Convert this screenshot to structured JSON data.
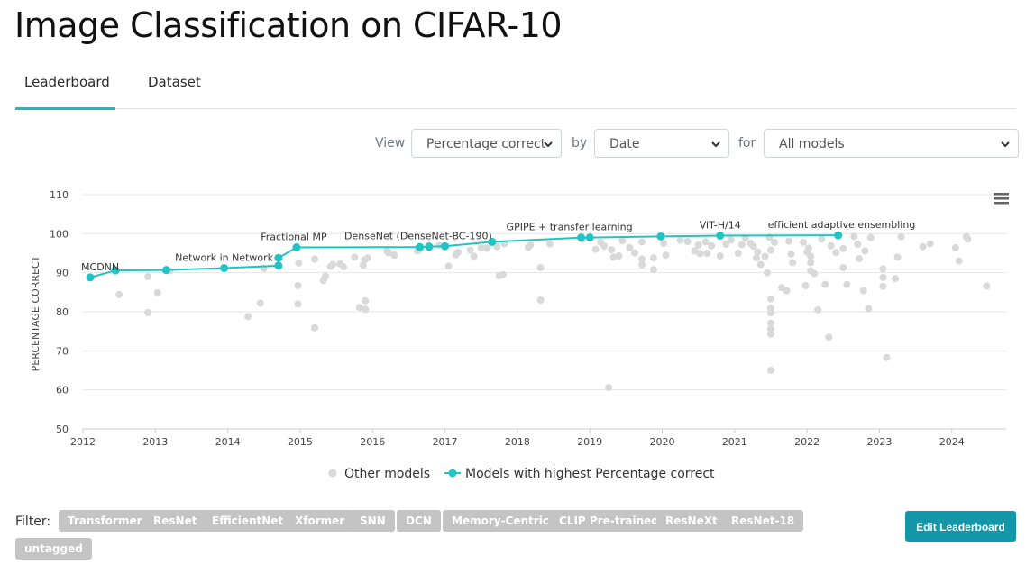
{
  "page": {
    "title": "Image Classification on CIFAR-10"
  },
  "tabs": [
    {
      "label": "Leaderboard",
      "active": true
    },
    {
      "label": "Dataset",
      "active": false
    }
  ],
  "controls": {
    "view_label": "View",
    "view_value": "Percentage correct",
    "by_label": "by",
    "by_value": "Date",
    "for_label": "for",
    "for_value": "All models"
  },
  "chart_data": {
    "type": "scatter",
    "ylabel": "PERCENTAGE CORRECT",
    "xlabel": "",
    "ylim": [
      50,
      110
    ],
    "xlim": [
      2012,
      2024.75
    ],
    "yticks": [
      50,
      60,
      70,
      80,
      90,
      100,
      110
    ],
    "xticks": [
      "2012",
      "2013",
      "2014",
      "2015",
      "2016",
      "2017",
      "2018",
      "2019",
      "2020",
      "2021",
      "2022",
      "2023",
      "2024"
    ],
    "legend": {
      "position": "bottom",
      "other": "Other models",
      "best": "Models with highest Percentage correct"
    },
    "colors": {
      "best": "#21c4c4",
      "other": "#d9d9d9",
      "grid": "#e6e6e6"
    },
    "best_series": [
      {
        "x": 2012.1,
        "y": 88.8,
        "label": "MCDNN"
      },
      {
        "x": 2012.45,
        "y": 90.6
      },
      {
        "x": 2013.15,
        "y": 90.7
      },
      {
        "x": 2013.95,
        "y": 91.2,
        "label": "Network in Network"
      },
      {
        "x": 2014.7,
        "y": 91.8
      },
      {
        "x": 2014.7,
        "y": 93.8
      },
      {
        "x": 2014.95,
        "y": 96.5,
        "label": "Fractional MP"
      },
      {
        "x": 2016.65,
        "y": 96.6
      },
      {
        "x": 2016.78,
        "y": 96.7,
        "label": "DenseNet (DenseNet-BC-190)"
      },
      {
        "x": 2017.0,
        "y": 96.8
      },
      {
        "x": 2017.65,
        "y": 97.9
      },
      {
        "x": 2018.88,
        "y": 99.0,
        "label": "GPIPE + transfer learning"
      },
      {
        "x": 2019.0,
        "y": 99.0
      },
      {
        "x": 2019.98,
        "y": 99.3
      },
      {
        "x": 2020.8,
        "y": 99.5,
        "label": "ViT-H/14"
      },
      {
        "x": 2022.43,
        "y": 99.6,
        "label": "efficient adaptive ensembling"
      }
    ],
    "other_points": [
      [
        2012.5,
        84.4
      ],
      [
        2012.9,
        79.8
      ],
      [
        2012.9,
        89.0
      ],
      [
        2013.03,
        84.9
      ],
      [
        2013.2,
        90.5
      ],
      [
        2014.28,
        78.8
      ],
      [
        2014.45,
        82.2
      ],
      [
        2014.5,
        91.1
      ],
      [
        2014.97,
        82.0
      ],
      [
        2014.97,
        86.7
      ],
      [
        2014.98,
        92.5
      ],
      [
        2015.2,
        93.5
      ],
      [
        2015.2,
        75.9
      ],
      [
        2015.32,
        88.0
      ],
      [
        2015.35,
        89.1
      ],
      [
        2015.42,
        91.6
      ],
      [
        2015.45,
        92.1
      ],
      [
        2015.55,
        92.3
      ],
      [
        2015.6,
        91.5
      ],
      [
        2015.75,
        94.0
      ],
      [
        2015.82,
        81.1
      ],
      [
        2015.87,
        91.9
      ],
      [
        2015.89,
        93.3
      ],
      [
        2015.9,
        82.8
      ],
      [
        2015.9,
        80.6
      ],
      [
        2015.93,
        93.8
      ],
      [
        2016.2,
        95.6
      ],
      [
        2016.22,
        95.1
      ],
      [
        2016.3,
        94.5
      ],
      [
        2016.62,
        95.6
      ],
      [
        2016.67,
        96.2
      ],
      [
        2016.92,
        97.0
      ],
      [
        2017.05,
        91.7
      ],
      [
        2017.15,
        94.6
      ],
      [
        2017.18,
        95.3
      ],
      [
        2017.35,
        95.8
      ],
      [
        2017.4,
        94.2
      ],
      [
        2017.5,
        96.4
      ],
      [
        2017.58,
        96.3
      ],
      [
        2017.72,
        96.7
      ],
      [
        2017.75,
        89.2
      ],
      [
        2017.8,
        89.5
      ],
      [
        2017.82,
        97.4
      ],
      [
        2018.15,
        96.5
      ],
      [
        2018.18,
        97.1
      ],
      [
        2018.32,
        91.3
      ],
      [
        2018.32,
        83.0
      ],
      [
        2018.45,
        97.4
      ],
      [
        2018.9,
        98.5
      ],
      [
        2019.08,
        96.0
      ],
      [
        2019.15,
        97.8
      ],
      [
        2019.2,
        96.8
      ],
      [
        2019.3,
        95.9
      ],
      [
        2019.33,
        94.0
      ],
      [
        2019.26,
        60.6
      ],
      [
        2019.4,
        94.3
      ],
      [
        2019.45,
        98.2
      ],
      [
        2019.55,
        96.4
      ],
      [
        2019.62,
        95.1
      ],
      [
        2019.72,
        97.9
      ],
      [
        2019.72,
        93.5
      ],
      [
        2019.72,
        92.0
      ],
      [
        2019.88,
        93.8
      ],
      [
        2019.88,
        90.8
      ],
      [
        2020.05,
        94.5
      ],
      [
        2020.02,
        97.5
      ],
      [
        2020.25,
        98.3
      ],
      [
        2020.35,
        98.0
      ],
      [
        2020.45,
        95.6
      ],
      [
        2020.5,
        97.1
      ],
      [
        2020.52,
        94.9
      ],
      [
        2020.6,
        97.9
      ],
      [
        2020.62,
        95.0
      ],
      [
        2020.68,
        96.9
      ],
      [
        2020.8,
        94.3
      ],
      [
        2020.88,
        97.3
      ],
      [
        2020.95,
        98.4
      ],
      [
        2021.05,
        95.0
      ],
      [
        2021.1,
        97.2
      ],
      [
        2021.15,
        98.9
      ],
      [
        2021.22,
        97.5
      ],
      [
        2021.26,
        96.8
      ],
      [
        2021.3,
        93.8
      ],
      [
        2021.32,
        95.3
      ],
      [
        2021.36,
        92.1
      ],
      [
        2021.42,
        94.2
      ],
      [
        2021.45,
        90.0
      ],
      [
        2021.48,
        99.1
      ],
      [
        2021.5,
        83.3
      ],
      [
        2021.5,
        80.9
      ],
      [
        2021.5,
        79.7
      ],
      [
        2021.5,
        77.1
      ],
      [
        2021.5,
        75.6
      ],
      [
        2021.5,
        74.3
      ],
      [
        2021.5,
        65.0
      ],
      [
        2021.5,
        95.8
      ],
      [
        2021.55,
        97.8
      ],
      [
        2021.65,
        86.2
      ],
      [
        2021.72,
        85.4
      ],
      [
        2021.75,
        98.1
      ],
      [
        2021.78,
        94.8
      ],
      [
        2021.8,
        92.6
      ],
      [
        2021.95,
        97.8
      ],
      [
        2021.98,
        86.7
      ],
      [
        2022.0,
        95.3
      ],
      [
        2022.02,
        96.3
      ],
      [
        2022.05,
        94.2
      ],
      [
        2022.05,
        92.6
      ],
      [
        2022.05,
        90.5
      ],
      [
        2022.1,
        89.8
      ],
      [
        2022.15,
        80.5
      ],
      [
        2022.2,
        98.6
      ],
      [
        2022.25,
        87.0
      ],
      [
        2022.3,
        73.5
      ],
      [
        2022.33,
        96.9
      ],
      [
        2022.4,
        95.2
      ],
      [
        2022.5,
        96.2
      ],
      [
        2022.5,
        91.3
      ],
      [
        2022.55,
        87.0
      ],
      [
        2022.65,
        99.3
      ],
      [
        2022.7,
        97.3
      ],
      [
        2022.72,
        93.6
      ],
      [
        2022.78,
        85.4
      ],
      [
        2022.8,
        95.6
      ],
      [
        2022.85,
        80.8
      ],
      [
        2022.88,
        99.0
      ],
      [
        2023.05,
        91.0
      ],
      [
        2023.05,
        88.8
      ],
      [
        2023.05,
        86.5
      ],
      [
        2023.1,
        68.3
      ],
      [
        2023.22,
        88.5
      ],
      [
        2023.25,
        94.0
      ],
      [
        2023.3,
        99.2
      ],
      [
        2023.6,
        96.7
      ],
      [
        2023.7,
        97.4
      ],
      [
        2024.05,
        96.4
      ],
      [
        2024.1,
        93.0
      ],
      [
        2024.2,
        99.2
      ],
      [
        2024.22,
        98.6
      ],
      [
        2024.48,
        86.6
      ]
    ]
  },
  "filter": {
    "label": "Filter:",
    "tags": [
      "Transformer",
      "ResNet",
      "EfficientNet",
      "Xformer",
      "SNN",
      "DCN",
      "Memory-Centric",
      "CLIP Pre-trained",
      "ResNeXt",
      "ResNet-18",
      "untagged"
    ]
  },
  "actions": {
    "edit_label": "Edit Leaderboard"
  },
  "icons": {
    "chart_menu": "hamburger-menu-icon",
    "select_caret": "chevron-down-icon"
  }
}
